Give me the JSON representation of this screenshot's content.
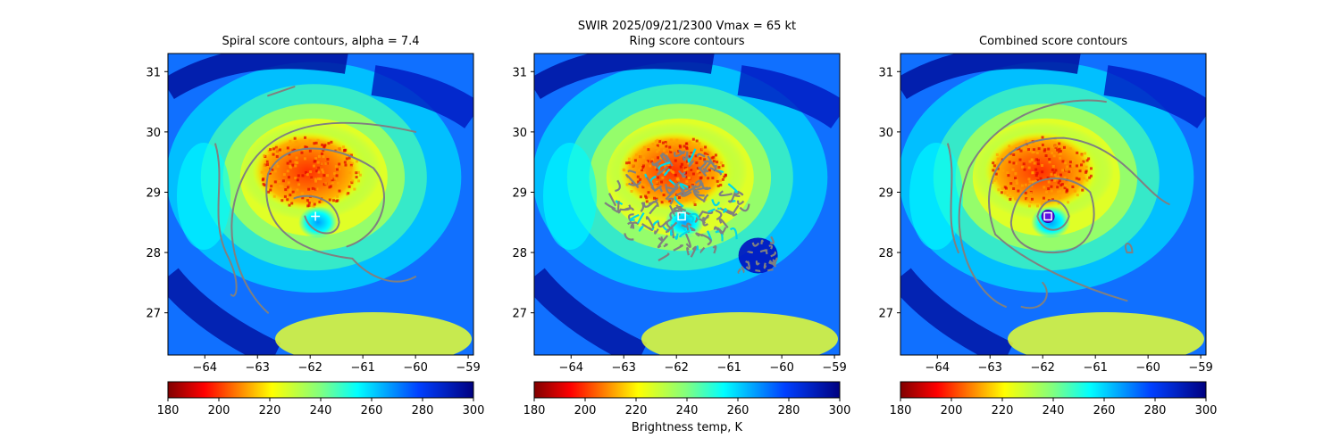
{
  "figure": {
    "suptitle_line1": "SWIR  2025/09/21/2300    Vmax = 65 kt",
    "colorbar_label": "Brightness temp, K"
  },
  "chart_data": [
    {
      "type": "heatmap",
      "title": "Spiral score contours, alpha =  7.4",
      "xlim": [
        -64.7,
        -58.9
      ],
      "ylim": [
        26.3,
        31.3
      ],
      "xticks": [
        -64,
        -63,
        -62,
        -61,
        -60,
        -59
      ],
      "yticks": [
        27,
        28,
        29,
        30,
        31
      ],
      "colormap": "jet_r",
      "colorbar": {
        "range": [
          180,
          300
        ],
        "ticks": [
          180,
          200,
          220,
          240,
          260,
          280,
          300
        ]
      },
      "center_marker": {
        "lon": -61.9,
        "lat": 28.6,
        "style": "white plus"
      },
      "contour_color": "#808080"
    },
    {
      "type": "heatmap",
      "title": "Ring score contours",
      "xlim": [
        -64.7,
        -58.9
      ],
      "ylim": [
        26.3,
        31.3
      ],
      "xticks": [
        -64,
        -63,
        -62,
        -61,
        -60,
        -59
      ],
      "yticks": [
        27,
        28,
        29,
        30,
        31
      ],
      "colormap": "jet_r",
      "colorbar": {
        "range": [
          180,
          300
        ],
        "ticks": [
          180,
          200,
          220,
          240,
          260,
          280,
          300
        ]
      },
      "center_marker": {
        "lon": -61.9,
        "lat": 28.6,
        "style": "white square"
      },
      "contour_color": "#808080"
    },
    {
      "type": "heatmap",
      "title": "Combined score contours",
      "xlim": [
        -64.7,
        -58.9
      ],
      "ylim": [
        26.3,
        31.3
      ],
      "xticks": [
        -64,
        -63,
        -62,
        -61,
        -60,
        -59
      ],
      "yticks": [
        27,
        28,
        29,
        30,
        31
      ],
      "colormap": "jet_r",
      "colorbar": {
        "range": [
          180,
          300
        ],
        "ticks": [
          180,
          200,
          220,
          240,
          260,
          280,
          300
        ]
      },
      "center_marker": {
        "lon": -61.9,
        "lat": 28.6,
        "style": "white square in purple circle"
      },
      "contour_color": "#808080"
    }
  ]
}
